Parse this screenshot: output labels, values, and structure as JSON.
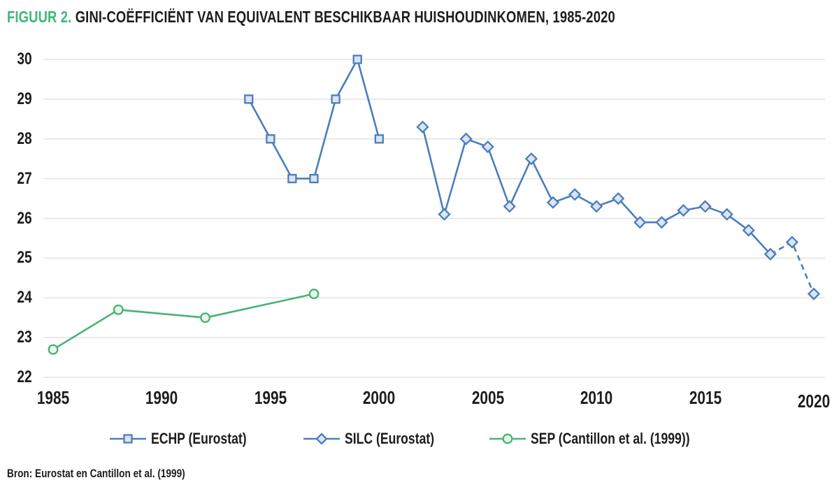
{
  "figure": {
    "title_prefix": "FIGUUR 2.",
    "title": "GINI-COËFFICIËNT VAN EQUIVALENT BESCHIKBAAR HUISHOUDINKOMEN, 1985-2020",
    "source": "Bron: Eurostat en Cantillon et al. (1999)"
  },
  "colors": {
    "title_accent": "#3cb878",
    "blue": "#4a7ebd",
    "blue_fill": "#dbe4f3",
    "green": "#47b375",
    "green_fill": "#e9f6ef",
    "gridline": "#e4e4e4",
    "text": "#1d1d1b"
  },
  "chart_data": {
    "type": "line",
    "title": "FIGUUR 2. GINI-COËFFICIËNT VAN EQUIVALENT BESCHIKBAAR HUISHOUDINKOMEN, 1985-2020",
    "xlabel": "",
    "ylabel": "",
    "xlim": [
      1985,
      2020
    ],
    "ylim": [
      22,
      30
    ],
    "x_ticks": [
      1985,
      1990,
      1995,
      2000,
      2005,
      2010,
      2015,
      2020
    ],
    "y_ticks": [
      22,
      23,
      24,
      25,
      26,
      27,
      28,
      29,
      30
    ],
    "grid": "horizontal",
    "legend_position": "bottom",
    "series": [
      {
        "name": "ECHP (Eurostat)",
        "marker": "square",
        "color_key": "blue",
        "fill_key": "blue_fill",
        "line_style": "solid",
        "x": [
          1994,
          1995,
          1996,
          1997,
          1998,
          1999,
          2000
        ],
        "values": [
          29,
          28,
          27,
          27,
          29,
          30,
          28
        ]
      },
      {
        "name": "SILC (Eurostat)",
        "marker": "diamond",
        "color_key": "blue",
        "fill_key": "blue_fill",
        "line_style": "solid-then-dashed",
        "dashed_from_x": 2018,
        "x": [
          2002,
          2003,
          2004,
          2005,
          2006,
          2007,
          2008,
          2009,
          2010,
          2011,
          2012,
          2013,
          2014,
          2015,
          2016,
          2017,
          2018,
          2019,
          2020
        ],
        "values": [
          28.3,
          26.1,
          28.0,
          27.8,
          26.3,
          27.5,
          26.4,
          26.6,
          26.3,
          26.5,
          25.9,
          25.9,
          26.2,
          26.3,
          26.1,
          25.7,
          25.1,
          25.4,
          24.1
        ]
      },
      {
        "name": "SEP (Cantillon et al. (1999))",
        "marker": "circle",
        "color_key": "green",
        "fill_key": "green_fill",
        "line_style": "solid",
        "x": [
          1985,
          1988,
          1992,
          1997
        ],
        "values": [
          22.7,
          23.7,
          23.5,
          24.1
        ]
      }
    ]
  }
}
